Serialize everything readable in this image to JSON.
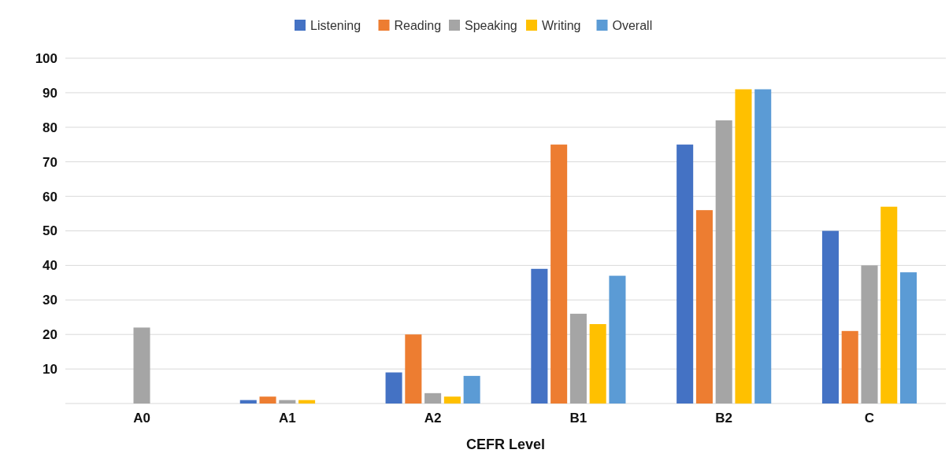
{
  "chart_data": {
    "type": "bar",
    "xlabel": "CEFR Level",
    "categories": [
      "A0",
      "A1",
      "A2",
      "B1",
      "B2",
      "C"
    ],
    "series": [
      {
        "name": "Listening",
        "color": "#4472c4",
        "values": [
          0,
          1,
          9,
          39,
          75,
          50
        ]
      },
      {
        "name": "Reading",
        "color": "#ed7d31",
        "values": [
          0,
          2,
          20,
          75,
          56,
          21
        ]
      },
      {
        "name": "Speaking",
        "color": "#a5a5a5",
        "values": [
          22,
          1,
          3,
          26,
          82,
          40
        ]
      },
      {
        "name": "Writing",
        "color": "#ffc000",
        "values": [
          0,
          1,
          2,
          23,
          91,
          57
        ]
      },
      {
        "name": "Overall",
        "color": "#5b9bd5",
        "values": [
          0,
          0,
          8,
          37,
          91,
          38
        ]
      }
    ],
    "ylim": [
      0,
      100
    ],
    "yticks": [
      10,
      20,
      30,
      40,
      50,
      60,
      70,
      80,
      90,
      100
    ],
    "grid": "y",
    "legend": "top"
  }
}
